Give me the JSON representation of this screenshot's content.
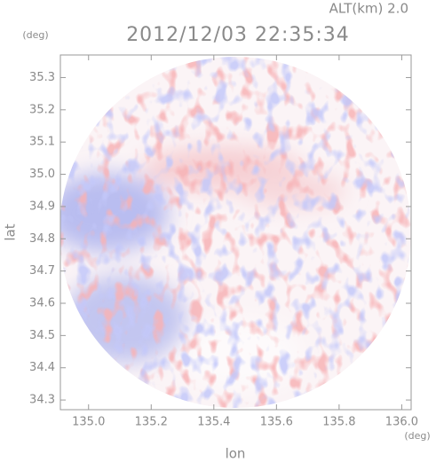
{
  "chart_data": {
    "type": "image",
    "title": "2012/12/03 22:35:34",
    "subtitle": "ALT(km) 2.0",
    "x_label": "lon",
    "y_label": "lat",
    "x_unit": "(deg)",
    "y_unit": "(deg)",
    "xlim": [
      134.91,
      136.03
    ],
    "ylim": [
      34.27,
      35.37
    ],
    "xticks": [
      {
        "value": 135.0,
        "label": "135.0"
      },
      135.2,
      135.4,
      135.6,
      135.8,
      {
        "value": 136.0,
        "label": "136.0"
      }
    ],
    "yticks": [
      34.3,
      34.4,
      34.5,
      34.6,
      34.7,
      34.8,
      34.9,
      {
        "value": 35.0,
        "label": "35.0"
      },
      35.1,
      35.2,
      35.3
    ]
  }
}
